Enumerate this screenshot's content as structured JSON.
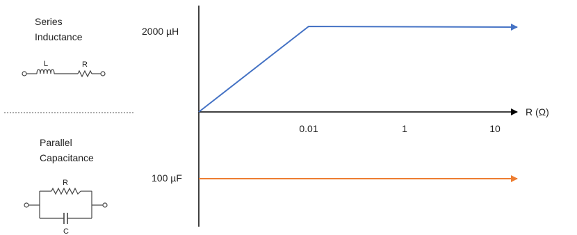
{
  "left_panel": {
    "series": {
      "line1": "Series",
      "line2": "Inductance",
      "label_L": "L",
      "label_R": "R"
    },
    "parallel": {
      "line1": "Parallel",
      "line2": "Capacitance",
      "label_R": "R",
      "label_C": "C"
    }
  },
  "plot": {
    "x_axis_label": "R (Ω)",
    "x_ticks": [
      "0.01",
      "1",
      "10"
    ],
    "y_label_inductance": "2000 µH",
    "y_label_capacitance": "100 µF",
    "colors": {
      "inductance": "#4472c4",
      "capacitance": "#ed7d31",
      "axis": "#000000"
    }
  }
}
